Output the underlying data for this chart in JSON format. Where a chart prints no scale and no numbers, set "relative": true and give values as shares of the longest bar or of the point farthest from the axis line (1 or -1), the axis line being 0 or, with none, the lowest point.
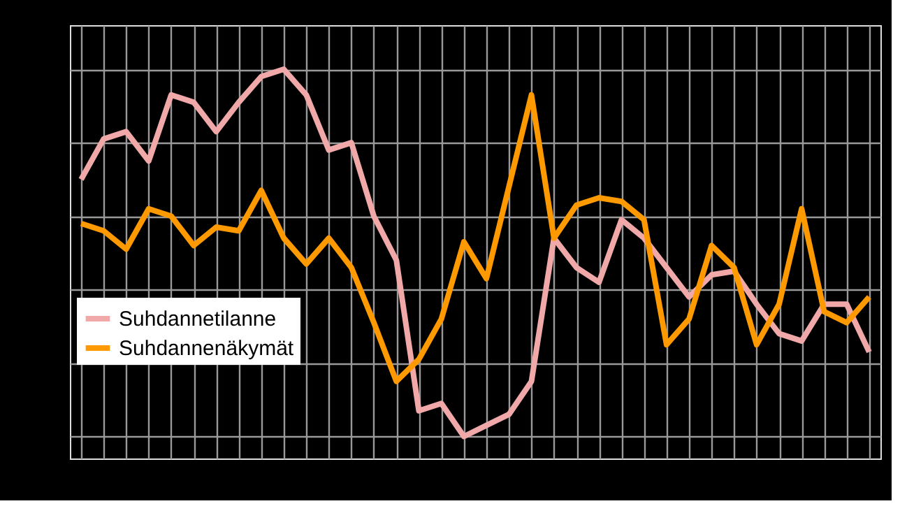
{
  "chart_data": {
    "type": "line",
    "relative": true,
    "grid": true,
    "legend": "left",
    "tick_labels": false,
    "line_style": "solid",
    "marker": "none",
    "categories": [
      null,
      null,
      null,
      null,
      null,
      null,
      null,
      null,
      null,
      null,
      null,
      null,
      null,
      null,
      null,
      null,
      null,
      null,
      null,
      null,
      null,
      null,
      null,
      null,
      null,
      null,
      null,
      null,
      null,
      null,
      null,
      null,
      null,
      null,
      null,
      null
    ],
    "series": [
      {
        "name": "Suhdannetilanne",
        "color": "#f0a8a8",
        "values": [
          0.7,
          0.81,
          0.83,
          0.75,
          0.93,
          0.91,
          0.83,
          0.91,
          0.98,
          1,
          0.93,
          0.78,
          0.8,
          0.6,
          0.48,
          0.07,
          0.09,
          0,
          0.03,
          0.06,
          0.15,
          0.54,
          0.46,
          0.42,
          0.59,
          0.54,
          0.46,
          0.38,
          0.44,
          0.45,
          0.36,
          0.28,
          0.26,
          0.36,
          0.36,
          0.23
        ]
      },
      {
        "name": "Suhdannenäkymät",
        "color": "#ff9900",
        "values": [
          0.58,
          0.56,
          0.51,
          0.62,
          0.6,
          0.52,
          0.57,
          0.56,
          0.67,
          0.54,
          0.47,
          0.54,
          0.46,
          0.31,
          0.15,
          0.21,
          0.32,
          0.53,
          0.43,
          0.68,
          0.93,
          0.54,
          0.63,
          0.65,
          0.64,
          0.59,
          0.25,
          0.32,
          0.52,
          0.46,
          0.25,
          0.36,
          0.62,
          0.34,
          0.31,
          0.38
        ]
      }
    ]
  }
}
